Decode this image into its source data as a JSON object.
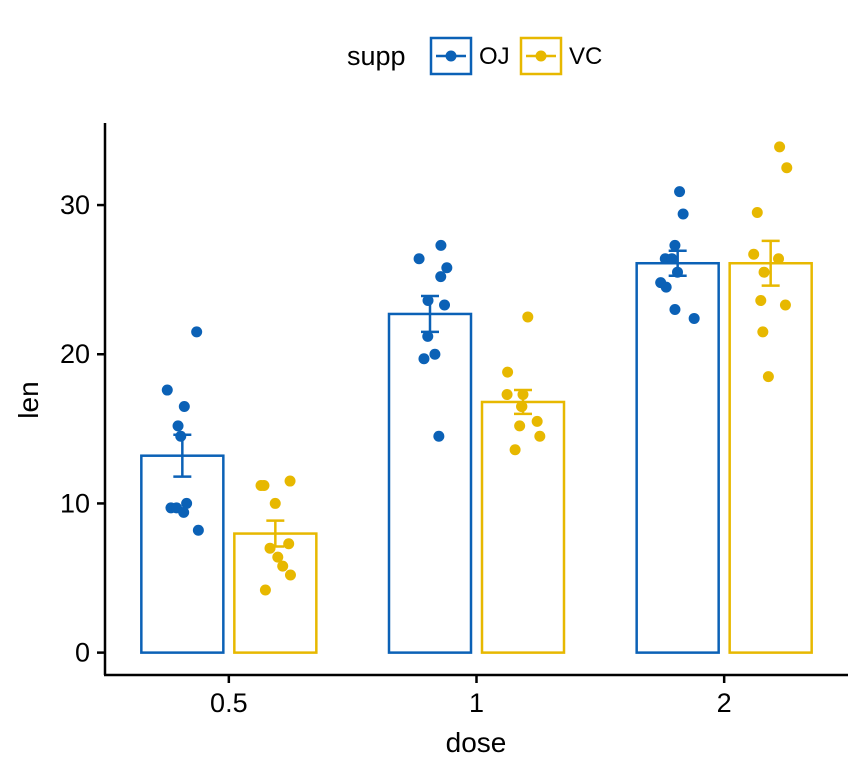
{
  "chart_data": {
    "type": "bar",
    "xlabel": "dose",
    "ylabel": "len",
    "categories": [
      "0.5",
      "1",
      "2"
    ],
    "ylim": [
      -1.5,
      35.5
    ],
    "yticks": [
      0,
      10,
      20,
      30
    ],
    "grid": false,
    "legend": {
      "title": "supp",
      "position": "top",
      "entries": [
        "OJ",
        "VC"
      ]
    },
    "series": [
      {
        "name": "OJ",
        "color": "#0B61B6",
        "values": [
          13.2,
          22.7,
          26.1
        ],
        "se": [
          1.4,
          1.2,
          0.84
        ],
        "points": [
          [
            21.5,
            17.6,
            16.5,
            15.2,
            14.5,
            10.0,
            9.7,
            9.7,
            9.4,
            8.2
          ],
          [
            27.3,
            26.4,
            25.8,
            25.2,
            23.6,
            23.3,
            21.2,
            20.0,
            19.7,
            14.5
          ],
          [
            30.9,
            29.4,
            27.3,
            26.4,
            26.4,
            25.5,
            24.8,
            24.5,
            23.0,
            22.4
          ]
        ]
      },
      {
        "name": "VC",
        "color": "#E7B800",
        "values": [
          7.98,
          16.8,
          26.1
        ],
        "se": [
          0.87,
          0.8,
          1.5
        ],
        "points": [
          [
            11.5,
            11.2,
            11.2,
            10.0,
            7.3,
            7.0,
            6.4,
            5.8,
            5.2,
            4.2
          ],
          [
            22.5,
            18.8,
            17.3,
            17.3,
            16.5,
            16.5,
            15.5,
            15.2,
            14.5,
            13.6
          ],
          [
            33.9,
            32.5,
            29.5,
            26.7,
            26.4,
            25.5,
            23.6,
            23.3,
            21.5,
            18.5
          ]
        ]
      }
    ]
  }
}
